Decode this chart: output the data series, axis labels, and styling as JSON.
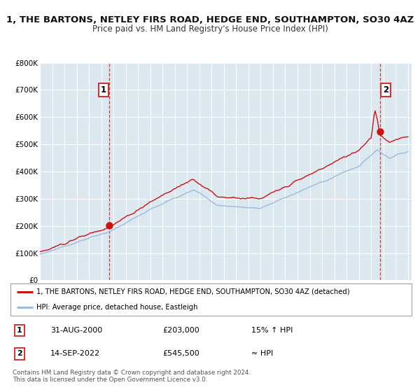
{
  "title": "1, THE BARTONS, NETLEY FIRS ROAD, HEDGE END, SOUTHAMPTON, SO30 4AZ",
  "subtitle": "Price paid vs. HM Land Registry's House Price Index (HPI)",
  "ylim": [
    0,
    800000
  ],
  "yticks": [
    0,
    100000,
    200000,
    300000,
    400000,
    500000,
    600000,
    700000,
    800000
  ],
  "ytick_labels": [
    "£0",
    "£100K",
    "£200K",
    "£300K",
    "£400K",
    "£500K",
    "£600K",
    "£700K",
    "£800K"
  ],
  "xlim_start": 1995.0,
  "xlim_end": 2025.3,
  "xticks": [
    1995,
    1996,
    1997,
    1998,
    1999,
    2000,
    2001,
    2002,
    2003,
    2004,
    2005,
    2006,
    2007,
    2008,
    2009,
    2010,
    2011,
    2012,
    2013,
    2014,
    2015,
    2016,
    2017,
    2018,
    2019,
    2020,
    2021,
    2022,
    2023,
    2024,
    2025
  ],
  "hpi_color": "#99bbdd",
  "price_color": "#cc1111",
  "background_color": "#dce8f0",
  "grid_color": "#ffffff",
  "sale1_x": 2000.667,
  "sale1_y": 203000,
  "sale2_x": 2022.708,
  "sale2_y": 545500,
  "legend_label_price": "1, THE BARTONS, NETLEY FIRS ROAD, HEDGE END, SOUTHAMPTON, SO30 4AZ (detached)",
  "legend_label_hpi": "HPI: Average price, detached house, Eastleigh",
  "table_row1": [
    "1",
    "31-AUG-2000",
    "£203,000",
    "15% ↑ HPI"
  ],
  "table_row2": [
    "2",
    "14-SEP-2022",
    "£545,500",
    "≈ HPI"
  ],
  "footer": "Contains HM Land Registry data © Crown copyright and database right 2024.\nThis data is licensed under the Open Government Licence v3.0.",
  "title_fontsize": 9.5,
  "subtitle_fontsize": 8.5
}
